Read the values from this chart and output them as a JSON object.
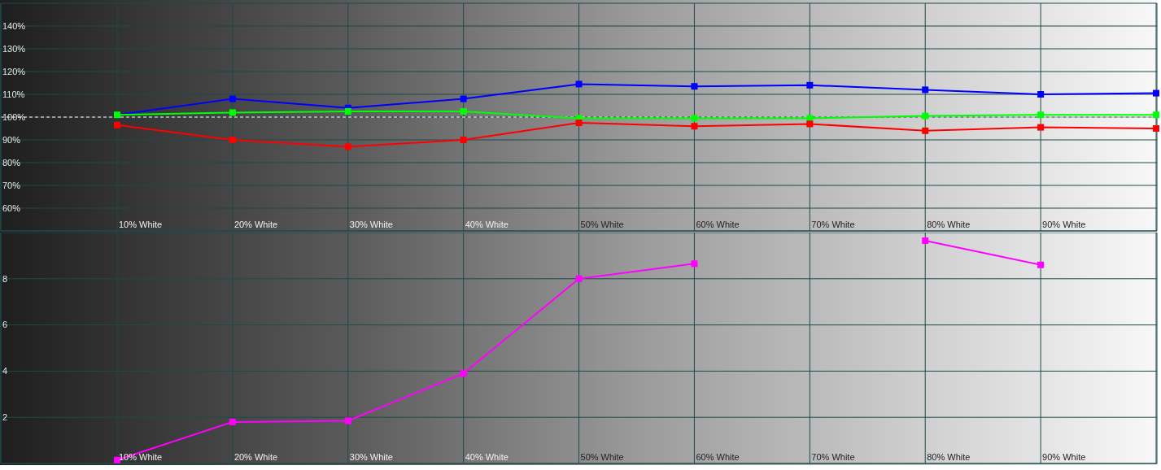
{
  "chart_data": [
    {
      "type": "line",
      "categories": [
        "10% White",
        "20% White",
        "30% White",
        "40% White",
        "50% White",
        "60% White",
        "70% White",
        "80% White",
        "90% White",
        null
      ],
      "series": [
        {
          "color": "#0000ff",
          "values": [
            101,
            108,
            104,
            108,
            114.5,
            113.5,
            114,
            112,
            110,
            110.5
          ]
        },
        {
          "color": "#00ff00",
          "values": [
            101,
            102,
            102.5,
            102.5,
            99.5,
            99.5,
            99.5,
            100.5,
            101,
            101
          ]
        },
        {
          "color": "#ff0000",
          "values": [
            96.5,
            90,
            87,
            90,
            97.5,
            96,
            97,
            94,
            95.5,
            95
          ]
        }
      ],
      "ylim": [
        50,
        150
      ],
      "yticks": [
        {
          "value": 60,
          "label": "60%"
        },
        {
          "value": 70,
          "label": "70%"
        },
        {
          "value": 80,
          "label": "80%"
        },
        {
          "value": 90,
          "label": "90%"
        },
        {
          "value": 100,
          "label": "100%"
        },
        {
          "value": 110,
          "label": "110%"
        },
        {
          "value": 120,
          "label": "120%"
        },
        {
          "value": 130,
          "label": "130%"
        },
        {
          "value": 140,
          "label": "140%"
        }
      ],
      "grid": true,
      "marker": "square",
      "ref_lines": [
        {
          "axis": "y",
          "value": 100,
          "color": "#ffffff",
          "line_style": "dashed"
        }
      ]
    },
    {
      "type": "line",
      "categories": [
        "10% White",
        "20% White",
        "30% White",
        "40% White",
        "50% White",
        "60% White",
        "70% White",
        "80% White",
        "90% White",
        null
      ],
      "series": [
        {
          "color": "#ff00ff",
          "values": [
            0.15,
            1.8,
            1.85,
            3.9,
            8,
            8.65,
            null,
            9.65,
            8.6,
            null
          ]
        }
      ],
      "ylim": [
        0,
        10
      ],
      "yticks": [
        2,
        4,
        6,
        8
      ],
      "grid": true,
      "marker": "square"
    }
  ]
}
